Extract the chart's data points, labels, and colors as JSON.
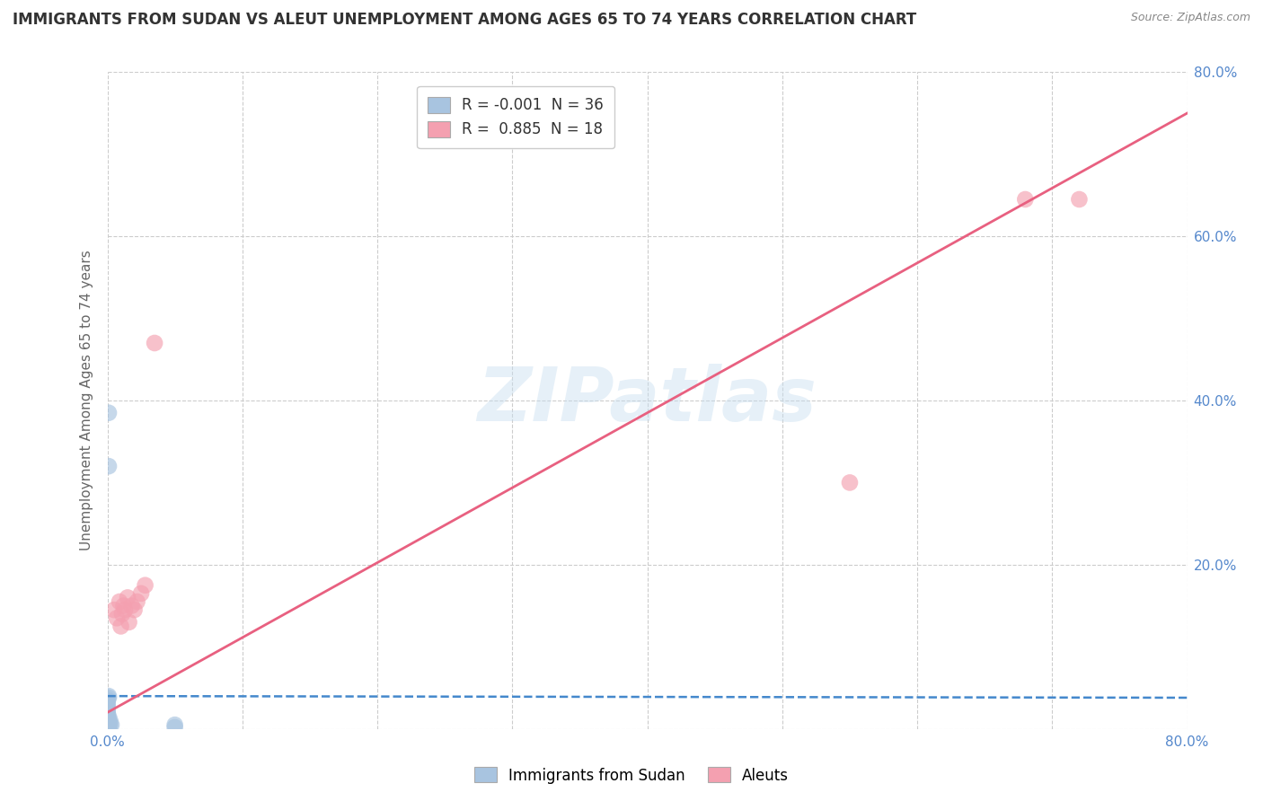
{
  "title": "IMMIGRANTS FROM SUDAN VS ALEUT UNEMPLOYMENT AMONG AGES 65 TO 74 YEARS CORRELATION CHART",
  "source": "Source: ZipAtlas.com",
  "ylabel": "Unemployment Among Ages 65 to 74 years",
  "xlim": [
    0,
    0.8
  ],
  "ylim": [
    0,
    0.8
  ],
  "grid_color": "#cccccc",
  "background_color": "#ffffff",
  "watermark": "ZIPatlas",
  "legend_R_sudan": "-0.001",
  "legend_N_sudan": "36",
  "legend_R_aleut": "0.885",
  "legend_N_aleut": "18",
  "sudan_color": "#a8c4e0",
  "aleut_color": "#f4a0b0",
  "sudan_line_color": "#4488cc",
  "aleut_line_color": "#e86080",
  "sudan_scatter": [
    [
      0.001,
      0.385
    ],
    [
      0.001,
      0.32
    ],
    [
      0.001,
      0.005
    ],
    [
      0.001,
      0.008
    ],
    [
      0.001,
      0.003
    ],
    [
      0.001,
      0.01
    ],
    [
      0.001,
      0.015
    ],
    [
      0.001,
      0.006
    ],
    [
      0.001,
      0.002
    ],
    [
      0.001,
      0.0
    ],
    [
      0.0,
      0.0
    ],
    [
      0.0,
      0.002
    ],
    [
      0.0,
      0.004
    ],
    [
      0.0,
      0.006
    ],
    [
      0.0,
      0.008
    ],
    [
      0.0,
      0.01
    ],
    [
      0.0,
      0.012
    ],
    [
      0.0,
      0.014
    ],
    [
      0.0,
      0.016
    ],
    [
      0.0,
      0.018
    ],
    [
      0.0,
      0.02
    ],
    [
      0.0,
      0.022
    ],
    [
      0.0,
      0.024
    ],
    [
      0.0,
      0.026
    ],
    [
      0.0,
      0.028
    ],
    [
      0.0,
      0.03
    ],
    [
      0.0,
      0.032
    ],
    [
      0.0,
      0.034
    ],
    [
      0.0,
      0.036
    ],
    [
      0.001,
      0.038
    ],
    [
      0.001,
      0.04
    ],
    [
      0.002,
      0.005
    ],
    [
      0.002,
      0.01
    ],
    [
      0.003,
      0.005
    ],
    [
      0.05,
      0.005
    ],
    [
      0.05,
      0.002
    ]
  ],
  "aleut_scatter": [
    [
      0.005,
      0.145
    ],
    [
      0.007,
      0.135
    ],
    [
      0.009,
      0.155
    ],
    [
      0.01,
      0.125
    ],
    [
      0.011,
      0.14
    ],
    [
      0.012,
      0.15
    ],
    [
      0.013,
      0.145
    ],
    [
      0.015,
      0.16
    ],
    [
      0.016,
      0.13
    ],
    [
      0.018,
      0.15
    ],
    [
      0.02,
      0.145
    ],
    [
      0.022,
      0.155
    ],
    [
      0.025,
      0.165
    ],
    [
      0.028,
      0.175
    ],
    [
      0.035,
      0.47
    ],
    [
      0.55,
      0.3
    ],
    [
      0.68,
      0.645
    ],
    [
      0.72,
      0.645
    ]
  ],
  "sudan_trendline_x": [
    0.0,
    0.8
  ],
  "sudan_trendline_y": [
    0.04,
    0.038
  ],
  "aleut_trendline_x": [
    0.0,
    0.8
  ],
  "aleut_trendline_y": [
    0.02,
    0.75
  ]
}
